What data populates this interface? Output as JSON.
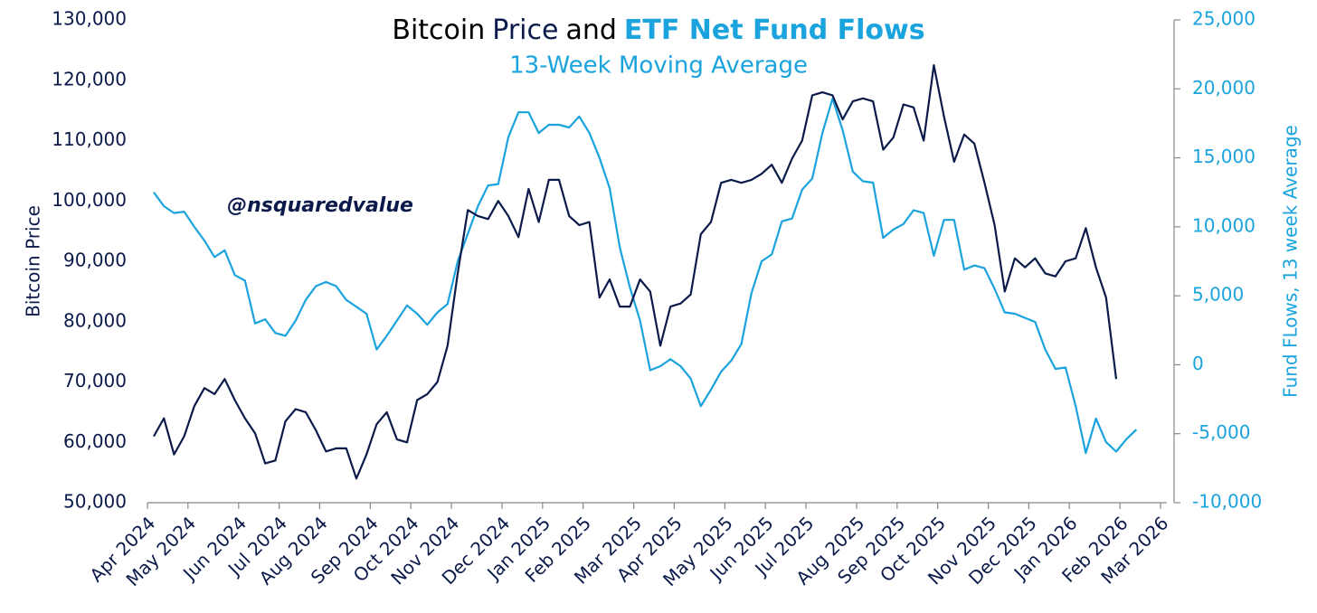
{
  "chart_data": {
    "type": "line",
    "title": [
      {
        "text": "Bitcoin",
        "color": "#000000"
      },
      {
        "text": "Price",
        "color": "#0b1a4a"
      },
      {
        "text": "and",
        "color": "#000000"
      },
      {
        "text": "ETF Net Fund Flows",
        "color": "#1aa3dd"
      }
    ],
    "subtitle": "13-Week Moving Average",
    "annotation": "@nsquaredvalue",
    "ylabel": "Bitcoin Price",
    "y2label": "Fund FLows, 13 week Average",
    "categories": [
      "Apr 2024",
      null,
      null,
      null,
      "May 2024",
      null,
      null,
      null,
      null,
      "Jun 2024",
      null,
      null,
      null,
      "Jul 2024",
      null,
      null,
      null,
      "Aug 2024",
      null,
      null,
      null,
      null,
      "Sep 2024",
      null,
      null,
      null,
      "Oct 2024",
      null,
      null,
      null,
      "Nov 2024",
      null,
      null,
      null,
      null,
      "Dec 2024",
      null,
      null,
      null,
      "Jan 2025",
      null,
      null,
      null,
      "Feb 2025",
      null,
      null,
      null,
      null,
      "Mar 2025",
      null,
      null,
      null,
      "Apr 2025",
      null,
      null,
      null,
      null,
      "May 2025",
      null,
      null,
      null,
      "Jun 2025",
      null,
      null,
      null,
      "Jul 2025",
      null,
      null,
      null,
      null,
      "Aug 2025",
      null,
      null,
      null,
      "Sep 2025",
      null,
      null,
      null,
      "Oct 2025",
      null,
      null,
      null,
      null,
      "Nov 2025",
      null,
      null,
      null,
      "Dec 2025",
      null,
      null,
      null,
      "Jan 2026",
      null,
      null,
      null,
      null,
      "Feb 2026",
      null,
      null,
      null,
      "Mar 2026"
    ],
    "series": [
      {
        "name": "Bitcoin Price",
        "color": "#0b1a4a",
        "axis": "y",
        "values": [
          61000,
          64000,
          58000,
          61000,
          66000,
          69000,
          68000,
          70500,
          67000,
          64000,
          61500,
          56500,
          57000,
          63500,
          65500,
          65000,
          62000,
          58500,
          59000,
          59000,
          54000,
          58000,
          63000,
          65000,
          60500,
          60000,
          67000,
          68000,
          70000,
          76000,
          88000,
          98500,
          97500,
          97000,
          100000,
          97500,
          94000,
          102000,
          96500,
          103500,
          103500,
          97500,
          96000,
          96500,
          84000,
          87000,
          82500,
          82500,
          87000,
          85000,
          76000,
          82500,
          83000,
          84500,
          94500,
          96500,
          103000,
          103500,
          103000,
          103500,
          104500,
          106000,
          103000,
          107000,
          110000,
          117500,
          118000,
          117500,
          113500,
          116500,
          117000,
          116500,
          108500,
          110500,
          116000,
          115500,
          110000,
          122500,
          114000,
          106500,
          111000,
          109500,
          103000,
          96000,
          85000,
          90500,
          89000,
          90500,
          88000,
          87500,
          90000,
          90500,
          95500,
          89000,
          84000,
          70500,
          null,
          null,
          null,
          null,
          null
        ]
      },
      {
        "name": "ETF Net Fund Flows",
        "color": "#1aa3dd",
        "axis": "y2",
        "values": [
          12500,
          11500,
          11000,
          11100,
          10000,
          9000,
          7800,
          8300,
          6500,
          6100,
          3000,
          3300,
          2300,
          2100,
          3200,
          4700,
          5700,
          6000,
          5700,
          4700,
          4200,
          3700,
          1100,
          2100,
          3200,
          4300,
          3700,
          2900,
          3800,
          4400,
          7500,
          9500,
          11500,
          13000,
          13100,
          16500,
          18300,
          18300,
          16800,
          17400,
          17400,
          17200,
          18000,
          16800,
          15000,
          12800,
          8500,
          5600,
          3200,
          -400,
          -100,
          400,
          -100,
          -1000,
          -3000,
          -1800,
          -500,
          300,
          1500,
          5200,
          7500,
          8000,
          10400,
          10600,
          12700,
          13500,
          16800,
          19300,
          17000,
          14000,
          13300,
          13200,
          9200,
          9800,
          10200,
          11200,
          11000,
          7900,
          10500,
          10500,
          6900,
          7200,
          7000,
          5500,
          3800,
          3700,
          3400,
          3100,
          1100,
          -300,
          -200,
          -3000,
          -6400,
          -3900,
          -5600,
          -6300,
          -5400,
          -4700,
          null,
          null,
          null
        ]
      }
    ],
    "ylim": [
      50000,
      130000
    ],
    "yticks": [
      {
        "value": 50000,
        "label": "50,000"
      },
      {
        "value": 60000,
        "label": "60,000"
      },
      {
        "value": 70000,
        "label": "70,000"
      },
      {
        "value": 80000,
        "label": "80,000"
      },
      {
        "value": 90000,
        "label": "90,000"
      },
      {
        "value": 100000,
        "label": "100,000"
      },
      {
        "value": 110000,
        "label": "110,000"
      },
      {
        "value": 120000,
        "label": "120,000"
      },
      {
        "value": 130000,
        "label": "130,000"
      }
    ],
    "y2lim": [
      -10000,
      25000
    ],
    "y2ticks": [
      {
        "value": -10000,
        "label": "-10,000"
      },
      {
        "value": -5000,
        "label": "-5,000"
      },
      0,
      {
        "value": 5000,
        "label": "5,000"
      },
      {
        "value": 10000,
        "label": "10,000"
      },
      {
        "value": 15000,
        "label": "15,000"
      },
      {
        "value": 20000,
        "label": "20,000"
      },
      {
        "value": 25000,
        "label": "25,000"
      }
    ],
    "ytick_color": "#0b1a4a",
    "y2tick_color": "#1aa3dd"
  }
}
